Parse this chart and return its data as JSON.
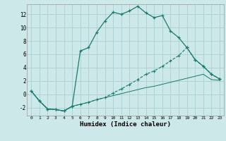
{
  "xlabel": "Humidex (Indice chaleur)",
  "bg_color": "#cce8e8",
  "grid_color": "#aacfcf",
  "line_color": "#1a7a6e",
  "xlim": [
    -0.5,
    23.5
  ],
  "ylim": [
    -3.2,
    13.5
  ],
  "xticks": [
    0,
    1,
    2,
    3,
    4,
    5,
    6,
    7,
    8,
    9,
    10,
    11,
    12,
    13,
    14,
    15,
    16,
    17,
    18,
    19,
    20,
    21,
    22,
    23
  ],
  "yticks": [
    -2,
    0,
    2,
    4,
    6,
    8,
    10,
    12
  ],
  "series1_x": [
    0,
    1,
    2,
    3,
    4,
    5,
    6,
    7,
    8,
    9,
    10,
    11,
    12,
    13,
    14,
    15,
    16,
    17,
    18,
    19,
    20,
    21,
    22,
    23
  ],
  "series1_y": [
    0.5,
    -1.0,
    -2.2,
    -2.3,
    -2.5,
    -1.8,
    6.5,
    7.0,
    9.3,
    11.0,
    12.3,
    12.0,
    12.5,
    13.2,
    12.2,
    11.5,
    11.8,
    9.5,
    8.5,
    7.0,
    5.2,
    4.2,
    3.0,
    2.3
  ],
  "series2_x": [
    0,
    1,
    2,
    3,
    4,
    5,
    6,
    7,
    8,
    9,
    10,
    11,
    12,
    13,
    14,
    15,
    16,
    17,
    18,
    19,
    20,
    21,
    22,
    23
  ],
  "series2_y": [
    0.5,
    -1.0,
    -2.2,
    -2.3,
    -2.5,
    -1.8,
    -1.5,
    -1.2,
    -0.8,
    -0.5,
    0.2,
    0.8,
    1.5,
    2.2,
    3.0,
    3.5,
    4.2,
    5.0,
    5.8,
    7.0,
    5.2,
    4.2,
    3.0,
    2.3
  ],
  "series3_x": [
    0,
    1,
    2,
    3,
    4,
    5,
    6,
    7,
    8,
    9,
    10,
    11,
    12,
    13,
    14,
    15,
    16,
    17,
    18,
    19,
    20,
    21,
    22,
    23
  ],
  "series3_y": [
    0.5,
    -1.0,
    -2.2,
    -2.3,
    -2.5,
    -1.8,
    -1.5,
    -1.2,
    -0.8,
    -0.5,
    -0.2,
    0.1,
    0.4,
    0.7,
    1.0,
    1.2,
    1.5,
    1.8,
    2.1,
    2.4,
    2.7,
    3.0,
    2.2,
    2.1
  ]
}
